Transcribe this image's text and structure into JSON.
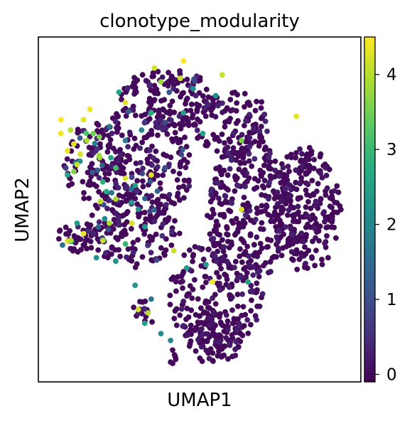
{
  "chart_data": {
    "type": "scatter",
    "title": "clonotype_modularity",
    "xlabel": "UMAP1",
    "ylabel": "UMAP2",
    "x_ticks_shown": false,
    "y_ticks_shown": false,
    "grid": false,
    "colormap": "viridis",
    "colorbar": {
      "min": -0.1,
      "max": 4.5,
      "ticks": [
        0,
        1,
        2,
        3,
        4
      ],
      "placement": "right"
    },
    "xlim": [
      0,
      100
    ],
    "ylim": [
      0,
      100
    ],
    "point_color_default": "#440154",
    "series": [
      {
        "regions": [
          {
            "cx": 66,
            "cy": 50,
            "rx": 14,
            "ry": 20,
            "count": 300,
            "values": [
              0,
              0.35
            ]
          },
          {
            "cx": 83,
            "cy": 50,
            "rx": 11,
            "ry": 18,
            "count": 240,
            "values": [
              0,
              0.2
            ]
          },
          {
            "cx": 55,
            "cy": 25,
            "rx": 15,
            "ry": 16,
            "count": 200,
            "values": [
              0,
              0.3
            ]
          },
          {
            "cx": 55,
            "cy": 13,
            "rx": 9,
            "ry": 8,
            "count": 110,
            "values": [
              0,
              0.2
            ]
          },
          {
            "cx": 32,
            "cy": 62,
            "rx": 16,
            "ry": 18,
            "count": 230,
            "values": [
              0,
              1.5
            ]
          },
          {
            "cx": 40,
            "cy": 82,
            "rx": 15,
            "ry": 9,
            "count": 150,
            "values": [
              0,
              1.2
            ]
          },
          {
            "cx": 60,
            "cy": 75,
            "rx": 12,
            "ry": 10,
            "count": 110,
            "values": [
              0,
              0.4
            ]
          },
          {
            "cx": 30,
            "cy": 45,
            "rx": 14,
            "ry": 12,
            "count": 160,
            "values": [
              0,
              2.5
            ]
          },
          {
            "cx": 17,
            "cy": 63,
            "rx": 9,
            "ry": 12,
            "count": 90,
            "values": [
              0,
              4.5
            ]
          },
          {
            "cx": 12,
            "cy": 42,
            "rx": 6,
            "ry": 5,
            "count": 40,
            "values": [
              0,
              4.5
            ]
          },
          {
            "cx": 33,
            "cy": 20,
            "rx": 4,
            "ry": 4,
            "count": 14,
            "values": [
              0,
              2.6
            ]
          },
          {
            "cx": 42,
            "cy": 7,
            "rx": 1.5,
            "ry": 3,
            "count": 6,
            "values": [
              0,
              0
            ]
          }
        ],
        "highlights": [
          {
            "x": 9,
            "y": 67,
            "v": 4.4
          },
          {
            "x": 11,
            "y": 69,
            "v": 4.3
          },
          {
            "x": 13,
            "y": 66,
            "v": 4.2
          },
          {
            "x": 7,
            "y": 72,
            "v": 4.4
          },
          {
            "x": 10,
            "y": 73,
            "v": 4.0
          },
          {
            "x": 12,
            "y": 63,
            "v": 4.1
          },
          {
            "x": 15,
            "y": 70,
            "v": 3.9
          },
          {
            "x": 11,
            "y": 61,
            "v": 3.6
          },
          {
            "x": 14,
            "y": 76,
            "v": 4.3
          },
          {
            "x": 17,
            "y": 72,
            "v": 3.5
          },
          {
            "x": 9,
            "y": 60,
            "v": 2.7
          },
          {
            "x": 19,
            "y": 65,
            "v": 3.8
          },
          {
            "x": 25,
            "y": 84,
            "v": 2.6
          },
          {
            "x": 27,
            "y": 81,
            "v": 4.3
          },
          {
            "x": 35,
            "y": 78,
            "v": 2.8
          },
          {
            "x": 38,
            "y": 87,
            "v": 3.8
          },
          {
            "x": 44,
            "y": 88,
            "v": 4.1
          },
          {
            "x": 30,
            "y": 57,
            "v": 2.5
          },
          {
            "x": 27,
            "y": 59,
            "v": 4.3
          },
          {
            "x": 35,
            "y": 60,
            "v": 4.3
          },
          {
            "x": 24,
            "y": 53,
            "v": 3.9
          },
          {
            "x": 14,
            "y": 43,
            "v": 4.4
          },
          {
            "x": 10,
            "y": 41,
            "v": 4.0
          },
          {
            "x": 12,
            "y": 46,
            "v": 2.4
          },
          {
            "x": 22,
            "y": 46,
            "v": 3.9
          },
          {
            "x": 29,
            "y": 46,
            "v": 4.2
          },
          {
            "x": 33,
            "y": 45,
            "v": 2.3
          },
          {
            "x": 31,
            "y": 21,
            "v": 4.2
          },
          {
            "x": 33,
            "y": 17,
            "v": 2.5
          },
          {
            "x": 30,
            "y": 28,
            "v": 2.3
          },
          {
            "x": 34,
            "y": 20,
            "v": 4.0
          },
          {
            "x": 45,
            "y": 78,
            "v": 2.5
          },
          {
            "x": 51,
            "y": 72,
            "v": 2.6
          },
          {
            "x": 55,
            "y": 83,
            "v": 2.2
          },
          {
            "x": 63,
            "y": 70,
            "v": 3.6
          },
          {
            "x": 63,
            "y": 50,
            "v": 4.3
          },
          {
            "x": 52,
            "y": 34,
            "v": 2.4
          },
          {
            "x": 54,
            "y": 29,
            "v": 4.4
          },
          {
            "x": 65,
            "y": 29,
            "v": 2.6
          },
          {
            "x": 80,
            "y": 77,
            "v": 4.3
          },
          {
            "x": 36,
            "y": 91,
            "v": 4.2
          },
          {
            "x": 45,
            "y": 93,
            "v": 4.5
          },
          {
            "x": 57,
            "y": 89,
            "v": 4.1
          },
          {
            "x": 48,
            "y": 85,
            "v": 2.2
          },
          {
            "x": 20,
            "y": 58,
            "v": 2.8
          },
          {
            "x": 24,
            "y": 62,
            "v": 3.1
          },
          {
            "x": 16,
            "y": 79,
            "v": 4.4
          },
          {
            "x": 7,
            "y": 76,
            "v": 4.5
          },
          {
            "x": 18,
            "y": 36,
            "v": 2.3
          },
          {
            "x": 20,
            "y": 41,
            "v": 4.1
          },
          {
            "x": 27,
            "y": 40,
            "v": 2.9
          },
          {
            "x": 24,
            "y": 35,
            "v": 2.2
          },
          {
            "x": 42,
            "y": 38,
            "v": 4.2
          },
          {
            "x": 46,
            "y": 33,
            "v": 2.4
          },
          {
            "x": 41,
            "y": 12,
            "v": 2.0
          },
          {
            "x": 38,
            "y": 14,
            "v": 2.1
          },
          {
            "x": 35,
            "y": 24,
            "v": 1.7
          },
          {
            "x": 27,
            "y": 70,
            "v": 1.8
          },
          {
            "x": 32,
            "y": 73,
            "v": 1.9
          },
          {
            "x": 22,
            "y": 74,
            "v": 1.6
          }
        ]
      }
    ]
  }
}
